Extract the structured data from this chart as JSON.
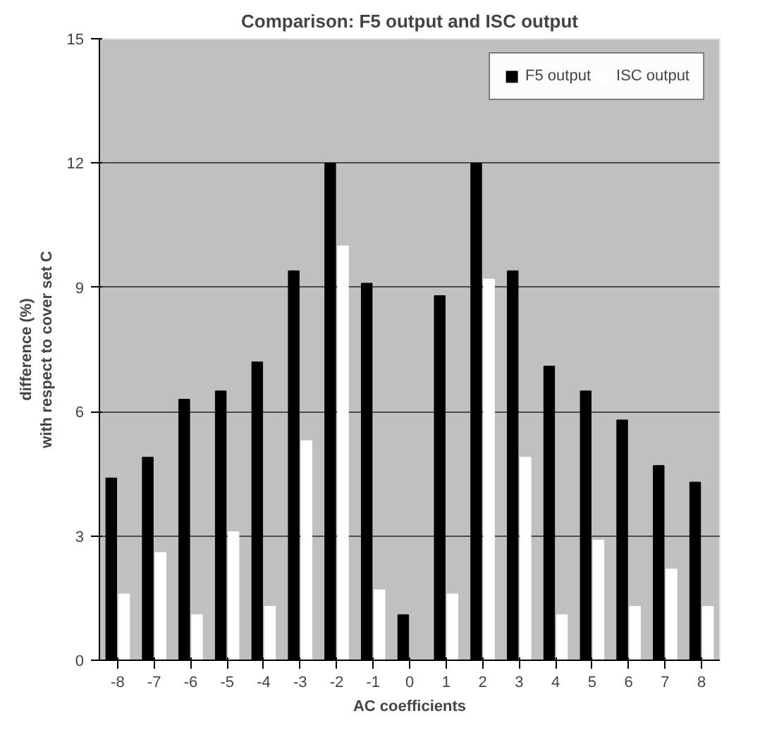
{
  "chart_data": {
    "type": "bar",
    "title": "Comparison: F5 output and ISC output",
    "xlabel": "AC coefficients",
    "ylabel": "difference (%)\nwith respect to cover set C",
    "categories": [
      "-8",
      "-7",
      "-6",
      "-5",
      "-4",
      "-3",
      "-2",
      "-1",
      "0",
      "1",
      "2",
      "3",
      "4",
      "5",
      "6",
      "7",
      "8"
    ],
    "series": [
      {
        "name": "F5 output",
        "color": "#000000",
        "values": [
          4.4,
          4.9,
          6.3,
          6.5,
          7.2,
          9.4,
          12,
          9.1,
          1.1,
          8.8,
          12,
          9.4,
          7.1,
          6.5,
          5.8,
          4.7,
          4.3
        ]
      },
      {
        "name": "ISC output",
        "color": "#ffffff",
        "values": [
          1.6,
          2.6,
          1.1,
          3.1,
          1.3,
          5.3,
          10,
          1.7,
          0,
          1.6,
          9.2,
          4.9,
          1.1,
          2.9,
          1.3,
          2.2,
          1.3
        ]
      }
    ],
    "ylim": [
      0,
      15
    ],
    "yticks": [
      0,
      3,
      6,
      9,
      12,
      15
    ],
    "grid": "y",
    "legend": "top right"
  }
}
